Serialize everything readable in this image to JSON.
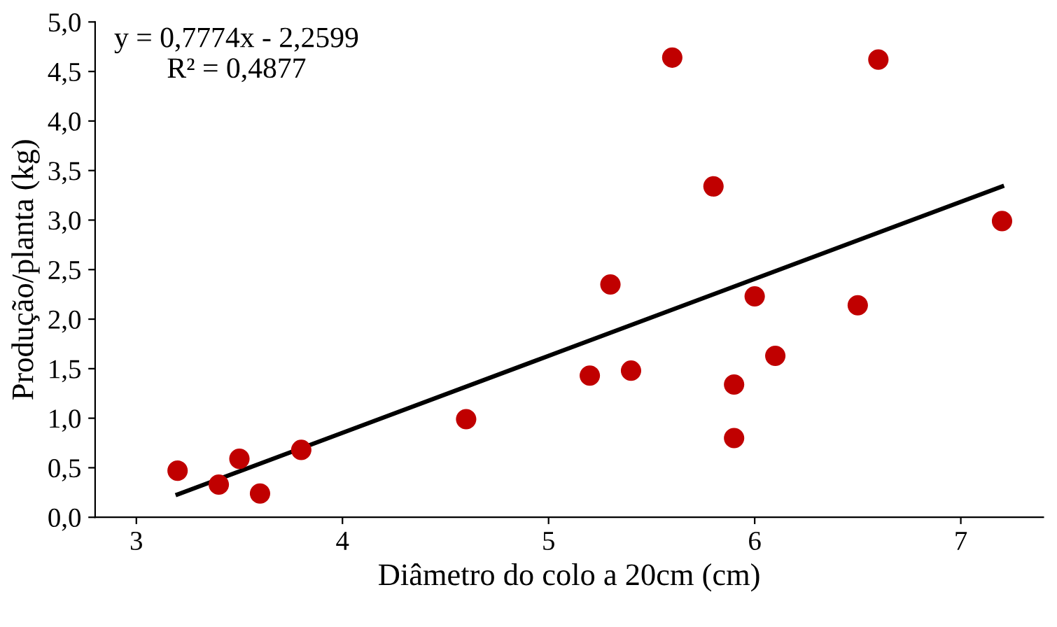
{
  "chart_data": {
    "type": "scatter",
    "xlabel": "Diâmetro do colo a 20cm (cm)",
    "ylabel": "Produção/planta (kg)",
    "annotations": [
      "y = 0,7774x - 2,2599\nR² = 0,4877"
    ],
    "xlim": [
      2.8,
      7.4
    ],
    "xticks": [
      3,
      4,
      5,
      6,
      7
    ],
    "ylim": [
      0,
      5
    ],
    "yticks": [
      {
        "value": 0,
        "label": "0,0"
      },
      {
        "value": 0.5,
        "label": "0,5"
      },
      {
        "value": 1,
        "label": "1,0"
      },
      {
        "value": 1.5,
        "label": "1,5"
      },
      {
        "value": 2,
        "label": "2,0"
      },
      {
        "value": 2.5,
        "label": "2,5"
      },
      {
        "value": 3,
        "label": "3,0"
      },
      {
        "value": 3.5,
        "label": "3,5"
      },
      {
        "value": 4,
        "label": "4,0"
      },
      {
        "value": 4.5,
        "label": "4,5"
      },
      {
        "value": 5,
        "label": "5,0"
      }
    ],
    "grid": false,
    "legend": false,
    "series": [
      {
        "marker": "circle",
        "color": "#c00000",
        "x": [
          3.2,
          3.4,
          3.5,
          3.6,
          3.8,
          4.6,
          5.2,
          5.3,
          5.4,
          5.6,
          5.8,
          5.9,
          5.9,
          6.0,
          6.1,
          6.5,
          6.6,
          7.2
        ],
        "values": [
          0.47,
          0.33,
          0.59,
          0.24,
          0.68,
          0.99,
          1.43,
          2.35,
          1.48,
          4.64,
          3.34,
          1.34,
          0.8,
          2.23,
          1.63,
          2.14,
          4.62,
          2.99
        ]
      },
      {
        "type": "line",
        "marker": "none",
        "color": "#000000",
        "line_style": "solid",
        "x": [
          3.2,
          7.2
        ],
        "values": [
          0.23,
          3.34
        ]
      }
    ]
  }
}
